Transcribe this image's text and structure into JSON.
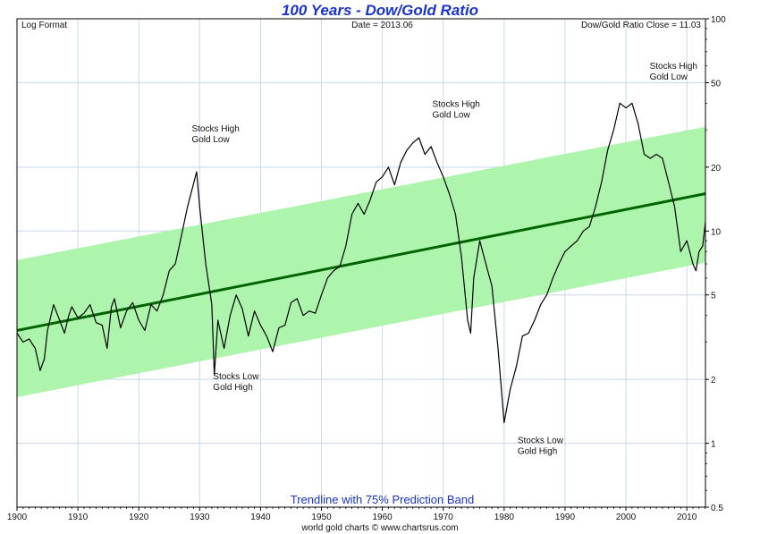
{
  "colors": {
    "title": "#1a33cc",
    "band_fill": "#adf5ad",
    "trendline": "#006400",
    "series": "#000000",
    "caption": "#1a33cc",
    "grid": "#c8d8ea"
  },
  "header": {
    "title": "100 Years - Dow/Gold Ratio",
    "left_note": "Log Format",
    "center_note": "Date = 2013.06",
    "right_note": "Dow/Gold Ratio Close = 11.03"
  },
  "footer": {
    "caption": "Trendline with 75% Prediction Band",
    "credit": "world gold charts © www.chartsrus.com"
  },
  "chart_data": {
    "type": "line",
    "title": "100 Years - Dow/Gold Ratio",
    "y_scale": "log",
    "xlim": [
      1900,
      2013.06
    ],
    "ylim": [
      0.5,
      100
    ],
    "grid": true,
    "x_ticks": [
      "1900",
      "1910",
      "1920",
      "1930",
      "1940",
      "1950",
      "1960",
      "1970",
      "1980",
      "1990",
      "2000",
      "2010"
    ],
    "y_ticks": [
      "100",
      "50",
      "20",
      "10",
      "5",
      "2",
      "1",
      "0.5"
    ],
    "series": [
      {
        "values": [
          [
            1900,
            3.3
          ],
          [
            1901,
            3.0
          ],
          [
            1902,
            3.1
          ],
          [
            1903,
            2.8
          ],
          [
            1903.8,
            2.2
          ],
          [
            1904.5,
            2.5
          ],
          [
            1905,
            3.4
          ],
          [
            1906,
            4.5
          ],
          [
            1907,
            3.8
          ],
          [
            1907.8,
            3.3
          ],
          [
            1908.5,
            4.0
          ],
          [
            1909,
            4.4
          ],
          [
            1910,
            3.9
          ],
          [
            1911,
            4.1
          ],
          [
            1912,
            4.5
          ],
          [
            1913,
            3.7
          ],
          [
            1914,
            3.6
          ],
          [
            1914.8,
            2.8
          ],
          [
            1915.5,
            4.4
          ],
          [
            1916,
            4.8
          ],
          [
            1917,
            3.5
          ],
          [
            1918,
            4.2
          ],
          [
            1919,
            4.6
          ],
          [
            1920,
            3.8
          ],
          [
            1921,
            3.4
          ],
          [
            1922,
            4.5
          ],
          [
            1923,
            4.2
          ],
          [
            1924,
            5.0
          ],
          [
            1925,
            6.5
          ],
          [
            1926,
            7.0
          ],
          [
            1927,
            9.5
          ],
          [
            1928,
            13.0
          ],
          [
            1929.5,
            19.0
          ],
          [
            1930,
            13.0
          ],
          [
            1931,
            7.0
          ],
          [
            1932,
            4.5
          ],
          [
            1932.4,
            2.1
          ],
          [
            1933,
            3.8
          ],
          [
            1934,
            2.8
          ],
          [
            1935,
            4.0
          ],
          [
            1936,
            5.0
          ],
          [
            1937,
            4.3
          ],
          [
            1938,
            3.2
          ],
          [
            1939,
            4.2
          ],
          [
            1940,
            3.6
          ],
          [
            1941,
            3.2
          ],
          [
            1942,
            2.7
          ],
          [
            1943,
            3.5
          ],
          [
            1944,
            3.6
          ],
          [
            1945,
            4.6
          ],
          [
            1946,
            4.8
          ],
          [
            1947,
            4.0
          ],
          [
            1948,
            4.2
          ],
          [
            1949,
            4.1
          ],
          [
            1950,
            5.0
          ],
          [
            1951,
            6.0
          ],
          [
            1952,
            6.5
          ],
          [
            1953,
            6.8
          ],
          [
            1954,
            8.5
          ],
          [
            1955,
            12.0
          ],
          [
            1956,
            13.5
          ],
          [
            1957,
            12.0
          ],
          [
            1958,
            14.0
          ],
          [
            1959,
            17.0
          ],
          [
            1960,
            18.0
          ],
          [
            1961,
            20.0
          ],
          [
            1962,
            16.5
          ],
          [
            1963,
            21.0
          ],
          [
            1964,
            24.0
          ],
          [
            1965,
            26.0
          ],
          [
            1966,
            27.5
          ],
          [
            1967,
            23.0
          ],
          [
            1968,
            25.0
          ],
          [
            1969,
            21.0
          ],
          [
            1970,
            18.0
          ],
          [
            1971,
            15.0
          ],
          [
            1972,
            12.0
          ],
          [
            1973,
            7.5
          ],
          [
            1974,
            3.8
          ],
          [
            1974.5,
            3.3
          ],
          [
            1975,
            6.0
          ],
          [
            1976,
            9.0
          ],
          [
            1977,
            7.0
          ],
          [
            1978,
            5.5
          ],
          [
            1979,
            2.8
          ],
          [
            1980,
            1.25
          ],
          [
            1981,
            1.8
          ],
          [
            1982,
            2.3
          ],
          [
            1983,
            3.2
          ],
          [
            1984,
            3.3
          ],
          [
            1985,
            3.8
          ],
          [
            1986,
            4.5
          ],
          [
            1987,
            5.0
          ],
          [
            1988,
            6.0
          ],
          [
            1989,
            7.0
          ],
          [
            1990,
            8.0
          ],
          [
            1991,
            8.5
          ],
          [
            1992,
            9.0
          ],
          [
            1993,
            10.0
          ],
          [
            1994,
            10.5
          ],
          [
            1995,
            13.0
          ],
          [
            1996,
            17.0
          ],
          [
            1997,
            24.0
          ],
          [
            1998,
            30.0
          ],
          [
            1999,
            40.0
          ],
          [
            2000,
            38.0
          ],
          [
            2001,
            40.0
          ],
          [
            2002,
            32.0
          ],
          [
            2003,
            23.0
          ],
          [
            2004,
            22.0
          ],
          [
            2005,
            23.0
          ],
          [
            2006,
            22.0
          ],
          [
            2007,
            17.0
          ],
          [
            2008,
            13.0
          ],
          [
            2009,
            8.0
          ],
          [
            2010,
            9.0
          ],
          [
            2011,
            7.0
          ],
          [
            2011.5,
            6.5
          ],
          [
            2012,
            8.0
          ],
          [
            2012.6,
            8.5
          ],
          [
            2013.06,
            11.03
          ]
        ]
      }
    ],
    "trendline": [
      [
        1900,
        3.4
      ],
      [
        2013.06,
        15.0
      ]
    ],
    "prediction_band": {
      "upper": [
        [
          1900,
          7.3
        ],
        [
          2013.06,
          31.0
        ]
      ],
      "lower": [
        [
          1900,
          1.65
        ],
        [
          2013.06,
          7.1
        ]
      ]
    },
    "annotations": [
      {
        "text": [
          "Stocks High",
          "Gold Low"
        ],
        "x": 1928.7,
        "y": 29.5
      },
      {
        "text": [
          "Stocks Low",
          "Gold High"
        ],
        "x": 1932.2,
        "y": 2.0
      },
      {
        "text": [
          "Stocks High",
          "Gold Low"
        ],
        "x": 1968.2,
        "y": 38.5
      },
      {
        "text": [
          "Stocks Low",
          "Gold High"
        ],
        "x": 1982.2,
        "y": 1.0
      },
      {
        "text": [
          "Stocks High",
          "Gold Low"
        ],
        "x": 2003.9,
        "y": 58.0
      }
    ]
  }
}
